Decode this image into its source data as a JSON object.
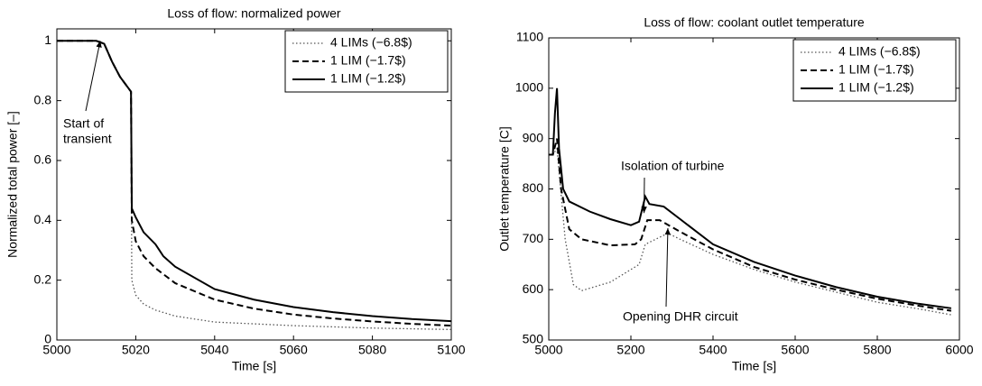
{
  "chart_data": [
    {
      "type": "line",
      "title": "Loss of flow: normalized power",
      "xlabel": "Time [s]",
      "ylabel": "Normalized total power [–]",
      "xlim": [
        5000,
        5100
      ],
      "xticks": [
        5000,
        5020,
        5040,
        5060,
        5080,
        5100
      ],
      "ylim": [
        0,
        1.04
      ],
      "yticks": [
        0,
        0.2,
        0.4,
        0.6,
        0.8,
        1
      ],
      "legend": "upper right",
      "grid": false,
      "series": [
        {
          "name": "4 LIMs (−6.8$)",
          "color": "#555555",
          "style": "dotted",
          "x": [
            5000,
            5010,
            5012,
            5014,
            5016,
            5018.8,
            5019,
            5020,
            5022,
            5025,
            5030,
            5040,
            5060,
            5080,
            5100
          ],
          "values": [
            1,
            1,
            0.99,
            0.93,
            0.88,
            0.83,
            0.2,
            0.15,
            0.12,
            0.1,
            0.08,
            0.06,
            0.048,
            0.04,
            0.035
          ]
        },
        {
          "name": "1 LIM (−1.7$)",
          "color": "#000000",
          "style": "dashed",
          "x": [
            5000,
            5010,
            5012,
            5014,
            5016,
            5018.8,
            5019,
            5020,
            5022,
            5025,
            5030,
            5040,
            5050,
            5060,
            5070,
            5080,
            5090,
            5100
          ],
          "values": [
            1,
            1,
            0.99,
            0.93,
            0.88,
            0.83,
            0.4,
            0.33,
            0.28,
            0.24,
            0.19,
            0.135,
            0.105,
            0.085,
            0.072,
            0.062,
            0.054,
            0.048
          ]
        },
        {
          "name": "1 LIM (−1.2$)",
          "color": "#000000",
          "style": "solid",
          "x": [
            5000,
            5010,
            5012,
            5014,
            5016,
            5018.8,
            5019,
            5020,
            5022,
            5025,
            5026,
            5027,
            5030,
            5040,
            5050,
            5060,
            5070,
            5080,
            5090,
            5100
          ],
          "values": [
            1,
            1,
            0.99,
            0.93,
            0.88,
            0.83,
            0.44,
            0.41,
            0.36,
            0.32,
            0.3,
            0.28,
            0.245,
            0.17,
            0.135,
            0.11,
            0.093,
            0.08,
            0.07,
            0.063
          ]
        }
      ],
      "annotations": [
        {
          "lines": [
            "Start of",
            "transient"
          ]
        }
      ]
    },
    {
      "type": "line",
      "title": "Loss of flow: coolant outlet temperature",
      "xlabel": "Time [s]",
      "ylabel": "Outlet temperature [C]",
      "xlim": [
        5000,
        6000
      ],
      "xticks": [
        5000,
        5200,
        5400,
        5600,
        5800,
        6000
      ],
      "ylim": [
        500,
        1100
      ],
      "yticks": [
        500,
        600,
        700,
        800,
        900,
        1000,
        1100
      ],
      "legend": "upper right",
      "grid": false,
      "series": [
        {
          "name": "4 LIMs (−6.8$)",
          "color": "#555555",
          "style": "dotted",
          "x": [
            5000,
            5010,
            5020,
            5040,
            5060,
            5080,
            5150,
            5220,
            5235,
            5260,
            5290,
            5320,
            5400,
            5500,
            5600,
            5700,
            5800,
            5900,
            5980
          ],
          "values": [
            868,
            868,
            880,
            700,
            610,
            598,
            615,
            650,
            690,
            700,
            712,
            700,
            670,
            640,
            615,
            595,
            575,
            562,
            550
          ]
        },
        {
          "name": "1 LIM (−1.7$)",
          "color": "#000000",
          "style": "dashed",
          "x": [
            5000,
            5010,
            5020,
            5030,
            5050,
            5080,
            5150,
            5210,
            5225,
            5240,
            5270,
            5320,
            5400,
            5500,
            5600,
            5700,
            5800,
            5900,
            5980
          ],
          "values": [
            868,
            868,
            900,
            800,
            720,
            700,
            688,
            690,
            700,
            738,
            738,
            715,
            680,
            645,
            620,
            600,
            582,
            568,
            558
          ]
        },
        {
          "name": "1 LIM (−1.2$)",
          "color": "#000000",
          "style": "solid",
          "x": [
            5000,
            5010,
            5015,
            5020,
            5025,
            5035,
            5050,
            5100,
            5150,
            5200,
            5220,
            5235,
            5245,
            5280,
            5320,
            5400,
            5500,
            5600,
            5700,
            5800,
            5900,
            5980
          ],
          "values": [
            868,
            868,
            950,
            1000,
            880,
            800,
            775,
            755,
            740,
            728,
            735,
            785,
            770,
            765,
            740,
            690,
            655,
            628,
            605,
            586,
            572,
            563
          ]
        }
      ],
      "annotations": [
        {
          "lines": [
            "Isolation of turbine"
          ]
        },
        {
          "lines": [
            "Opening DHR circuit"
          ]
        }
      ]
    }
  ]
}
